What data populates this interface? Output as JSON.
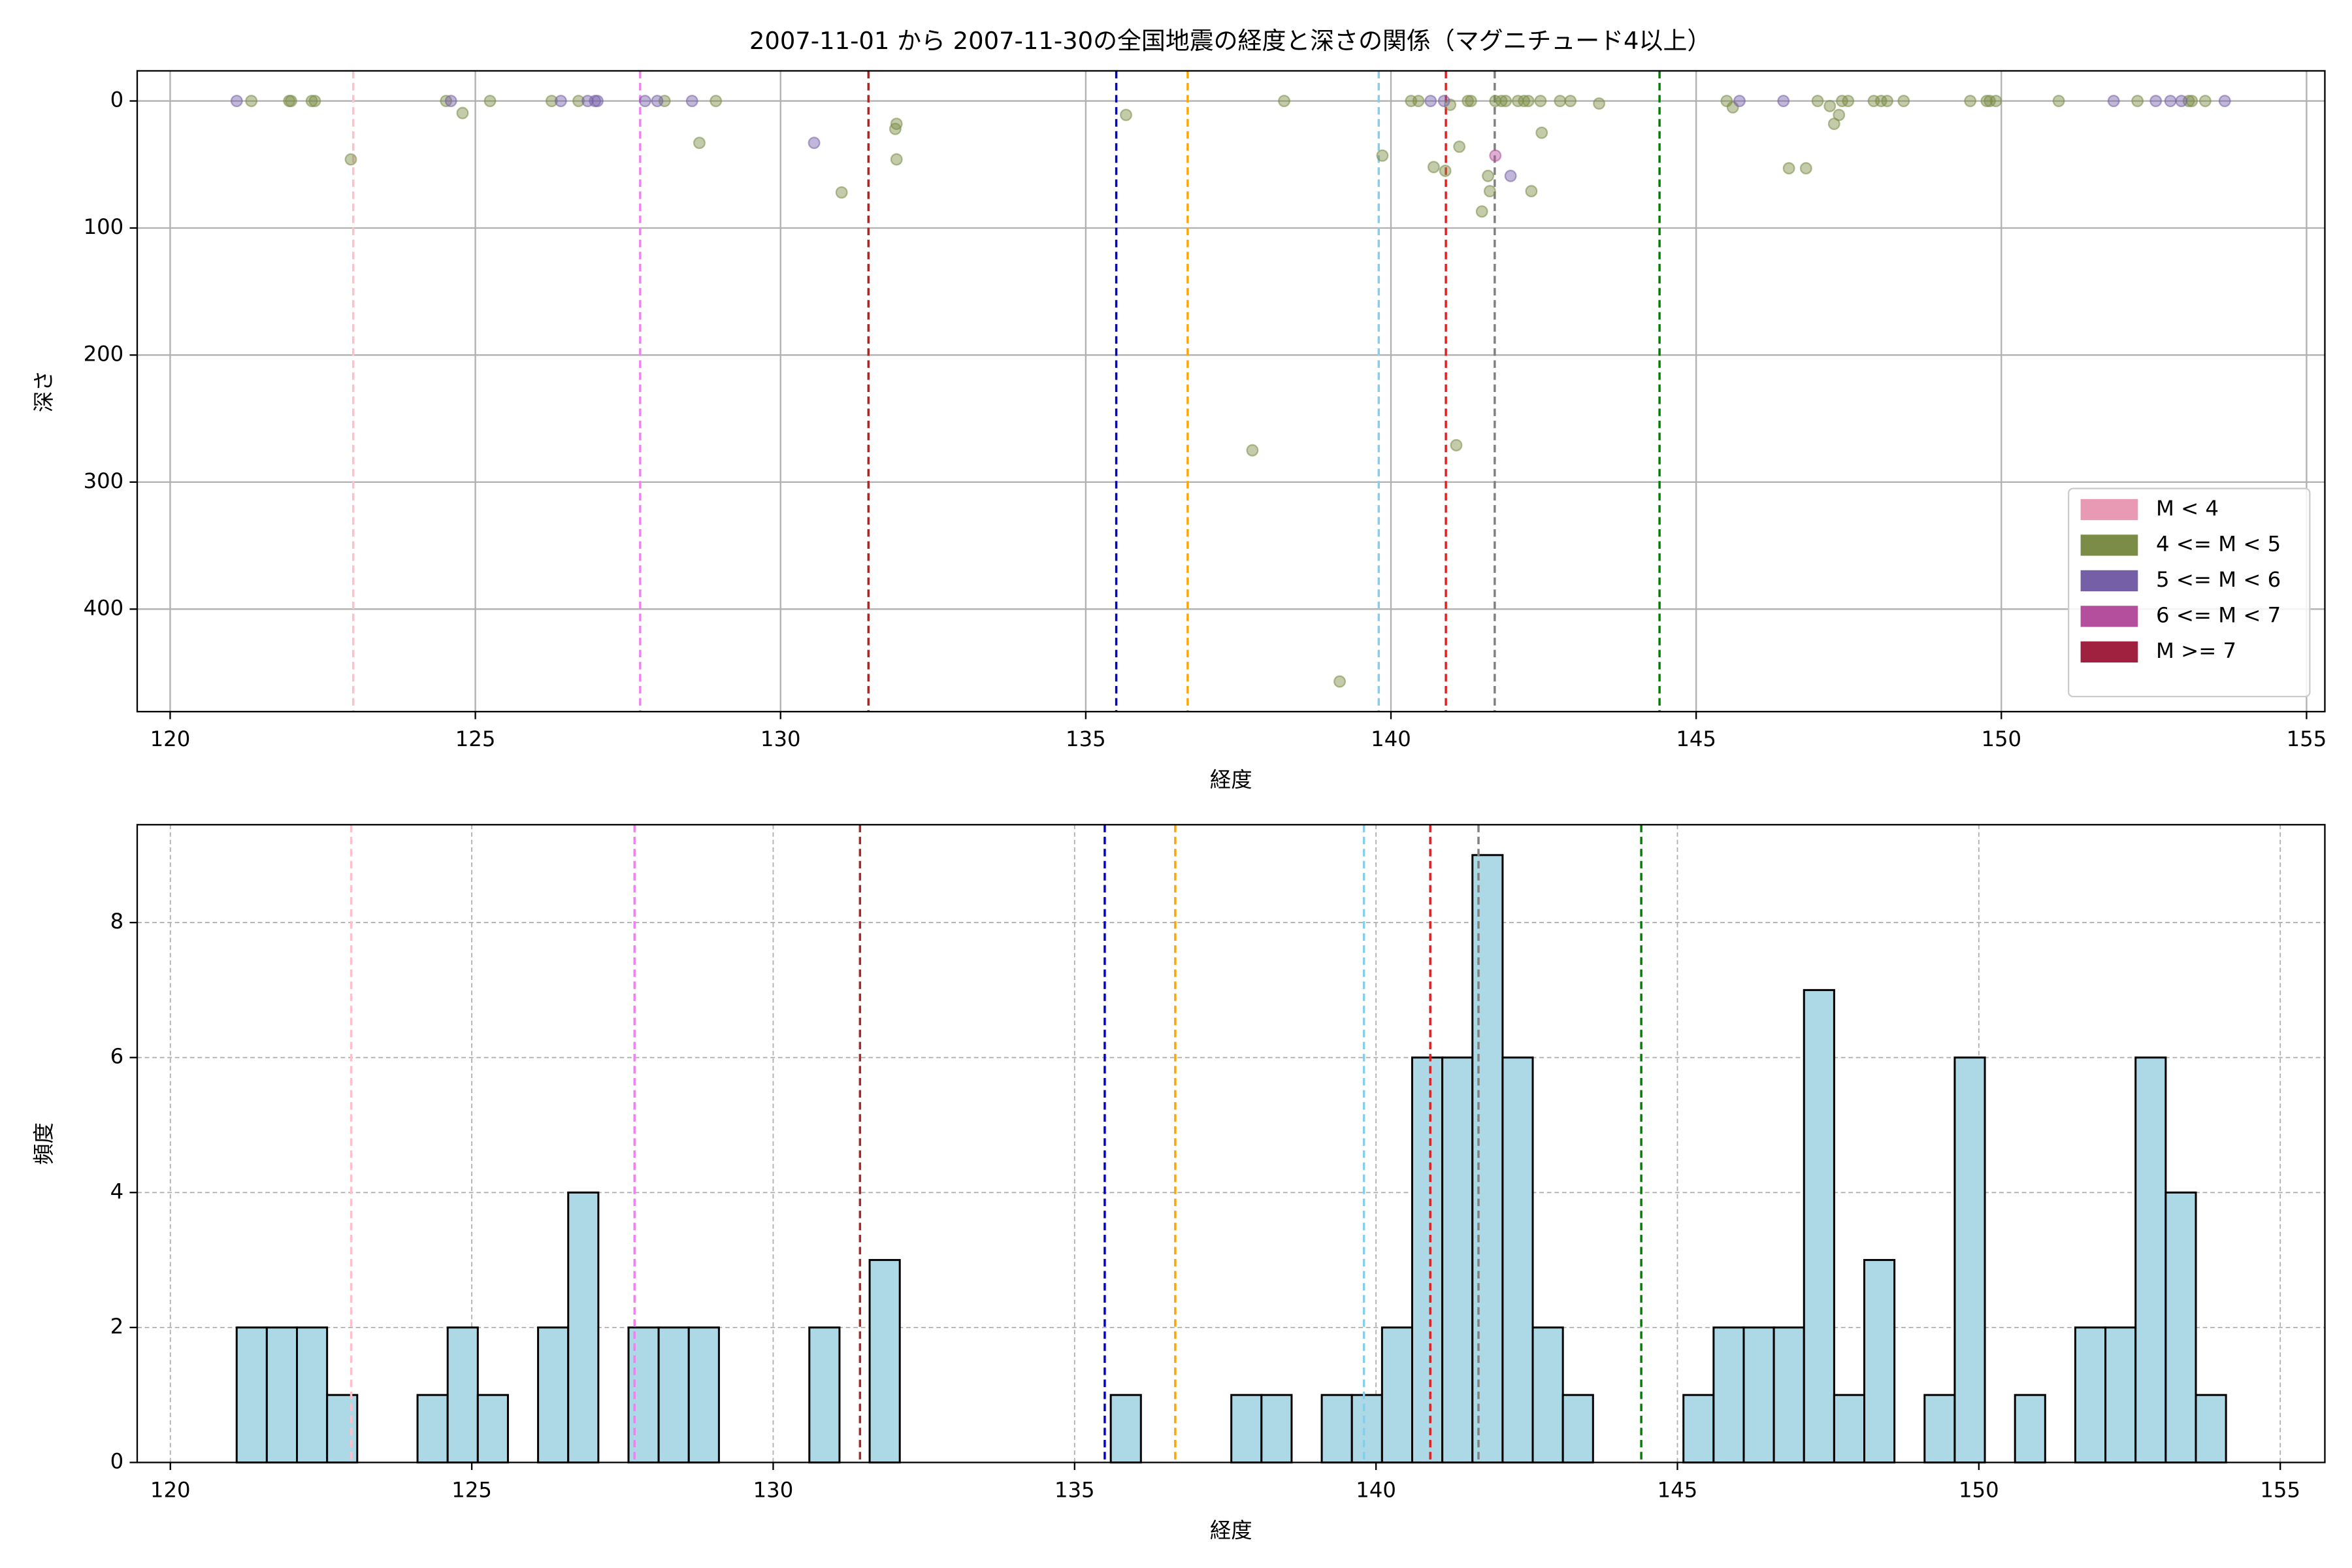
{
  "chart_data": [
    {
      "type": "scatter",
      "title": "2007-11-01 から 2007-11-30の全国地震の経度と深さの関係（マグニチュード4以上）",
      "x_label": "経度",
      "y_label": "深さ",
      "xlim": [
        119.46,
        155.3
      ],
      "ylim": [
        -23.7,
        480.7
      ],
      "y_inverted": true,
      "xticks": [
        120,
        125,
        130,
        135,
        140,
        145,
        150,
        155
      ],
      "yticks": [
        0,
        100,
        200,
        300,
        400
      ],
      "grid": true,
      "legend": "lower right",
      "vlines": [
        {
          "x": 123.0,
          "color": "#ffc0cb"
        },
        {
          "x": 127.7,
          "color": "#ee82ee"
        },
        {
          "x": 131.44,
          "color": "#a52a2a"
        },
        {
          "x": 135.5,
          "color": "#0000cd"
        },
        {
          "x": 136.67,
          "color": "#ffa500"
        },
        {
          "x": 139.8,
          "color": "#87ceeb"
        },
        {
          "x": 140.9,
          "color": "#e02020"
        },
        {
          "x": 141.7,
          "color": "#808080"
        },
        {
          "x": 144.4,
          "color": "#008000"
        }
      ],
      "series": [
        {
          "name": "M < 4",
          "color": "#e899b4",
          "x": [],
          "values": []
        },
        {
          "name": "4 <= M < 5",
          "color": "#7a8c45",
          "x": [
            121.33,
            121.95,
            121.98,
            122.32,
            122.37,
            122.96,
            124.52,
            124.79,
            125.24,
            126.25,
            126.69,
            128.1,
            128.67,
            128.94,
            131.0,
            131.88,
            131.9,
            131.9,
            135.66,
            137.73,
            138.25,
            139.16,
            139.86,
            140.33,
            140.45,
            140.7,
            140.89,
            140.97,
            141.07,
            141.12,
            141.26,
            141.31,
            141.49,
            141.59,
            141.62,
            141.71,
            141.81,
            141.88,
            142.08,
            142.18,
            142.25,
            142.3,
            142.45,
            142.47,
            142.77,
            142.94,
            143.41,
            145.5,
            145.6,
            146.52,
            146.8,
            146.99,
            147.19,
            147.26,
            147.34,
            147.39,
            147.49,
            147.91,
            148.03,
            148.13,
            148.4,
            149.49,
            149.76,
            149.81,
            149.91,
            150.94,
            152.23,
            153.07,
            153.12,
            153.34
          ],
          "values": [
            0,
            0,
            0,
            0,
            0,
            46,
            0,
            9.5,
            0,
            0,
            0,
            0,
            33,
            0,
            72,
            22,
            18,
            46,
            11,
            275,
            0,
            457,
            43,
            0,
            0,
            52,
            55,
            3,
            271,
            36,
            0,
            0,
            87,
            59,
            71,
            0,
            0,
            0,
            0,
            0,
            0,
            71,
            0,
            25,
            0,
            0,
            2,
            0,
            5,
            53,
            53,
            0,
            4,
            18,
            11,
            0,
            0,
            0,
            0,
            0,
            0,
            0,
            0,
            0,
            0,
            0,
            0,
            0,
            0,
            0
          ]
        },
        {
          "name": "5 <= M < 6",
          "color": "#7560a8",
          "x": [
            121.09,
            124.6,
            126.4,
            126.84,
            126.96,
            127.0,
            127.78,
            127.98,
            128.55,
            130.55,
            140.65,
            140.87,
            141.96,
            145.71,
            146.43,
            151.84,
            152.53,
            152.77,
            152.95,
            153.66
          ],
          "values": [
            0,
            0,
            0,
            0,
            0,
            0,
            0,
            0,
            0,
            33,
            0,
            0,
            59,
            0,
            0,
            0,
            0,
            0,
            0,
            0
          ]
        },
        {
          "name": "6 <= M < 7",
          "color": "#b34f9c",
          "x": [
            141.71
          ],
          "values": [
            43
          ]
        },
        {
          "name": "M >= 7",
          "color": "#a0203f",
          "x": [],
          "values": []
        }
      ]
    },
    {
      "type": "histogram",
      "x_label": "経度",
      "y_label": "頻度",
      "xlim": [
        119.45,
        155.74
      ],
      "ylim": [
        0,
        9.45
      ],
      "xticks": [
        120,
        125,
        130,
        135,
        140,
        145,
        150,
        155
      ],
      "yticks": [
        0,
        2,
        4,
        6,
        8
      ],
      "grid": true,
      "color": "#add8e6",
      "edgecolor": "#000000",
      "vlines": [
        {
          "x": 123.0,
          "color": "#ffc0cb"
        },
        {
          "x": 127.7,
          "color": "#ee82ee"
        },
        {
          "x": 131.44,
          "color": "#a52a2a"
        },
        {
          "x": 135.5,
          "color": "#0000cd"
        },
        {
          "x": 136.67,
          "color": "#ffa500"
        },
        {
          "x": 139.8,
          "color": "#87ceeb"
        },
        {
          "x": 140.9,
          "color": "#e02020"
        },
        {
          "x": 141.7,
          "color": "#808080"
        },
        {
          "x": 144.4,
          "color": "#008000"
        }
      ],
      "bins": [
        121.1,
        121.6,
        122.1,
        122.6,
        123.1,
        123.6,
        124.1,
        124.6,
        125.1,
        125.6,
        126.1,
        126.6,
        127.1,
        127.6,
        128.1,
        128.6,
        129.1,
        129.6,
        130.1,
        130.6,
        131.1,
        131.6,
        132.1,
        132.6,
        133.1,
        133.6,
        134.1,
        134.6,
        135.1,
        135.6,
        136.1,
        136.6,
        137.1,
        137.6,
        138.1,
        138.6,
        139.1,
        139.6,
        140.1,
        140.6,
        141.1,
        141.6,
        142.1,
        142.6,
        143.1,
        143.6,
        144.1,
        144.6,
        145.1,
        145.6,
        146.1,
        146.6,
        147.1,
        147.6,
        148.1,
        148.6,
        149.1,
        149.6,
        150.1,
        150.6,
        151.1,
        151.6,
        152.1,
        152.6,
        153.1,
        153.6,
        154.1
      ],
      "values": [
        2,
        2,
        2,
        1,
        0,
        0,
        1,
        2,
        1,
        0,
        2,
        4,
        0,
        2,
        2,
        2,
        0,
        0,
        0,
        2,
        0,
        3,
        0,
        0,
        0,
        0,
        0,
        0,
        0,
        1,
        0,
        0,
        0,
        1,
        1,
        0,
        1,
        1,
        2,
        6,
        6,
        9,
        6,
        2,
        1,
        0,
        0,
        0,
        1,
        2,
        2,
        2,
        7,
        1,
        3,
        0,
        1,
        6,
        0,
        1,
        0,
        2,
        2,
        6,
        4,
        1
      ]
    }
  ]
}
